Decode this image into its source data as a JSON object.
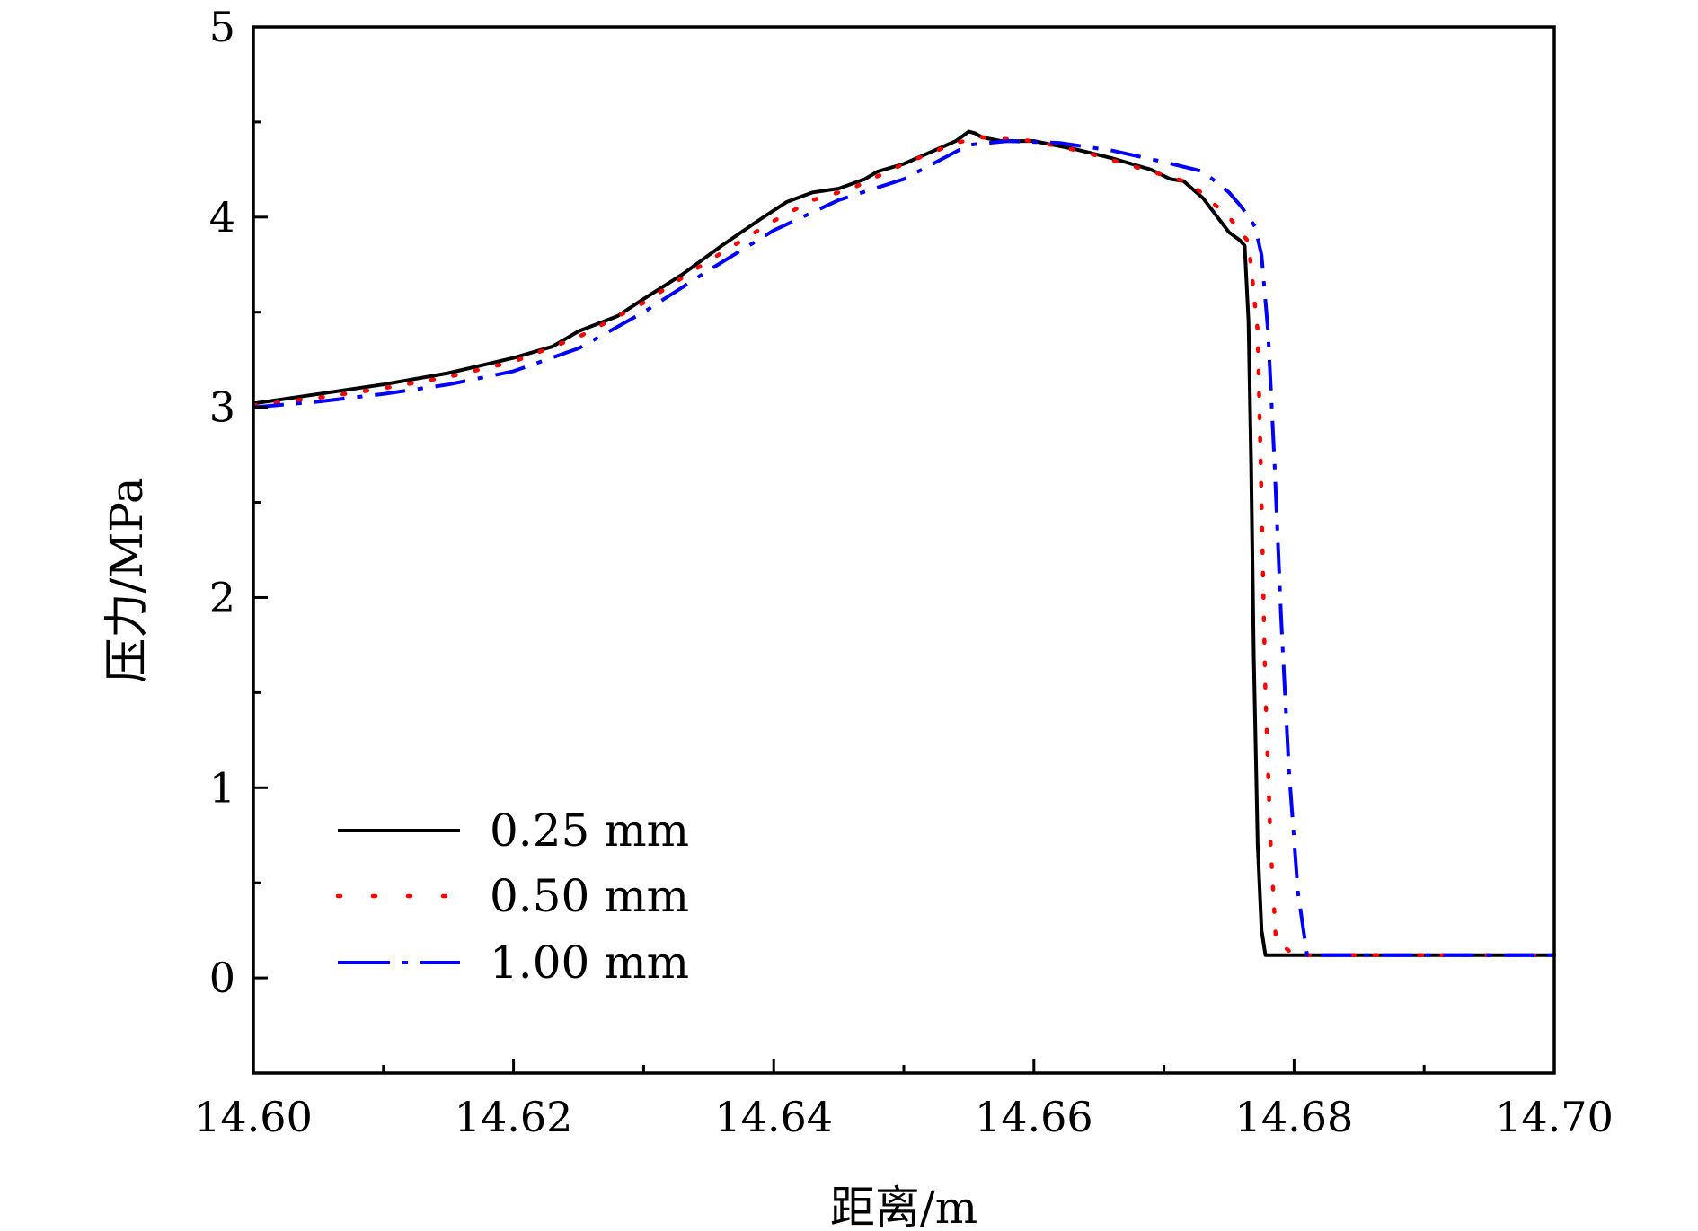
{
  "chart_data": {
    "type": "line",
    "title": "",
    "xlabel": "距离/m",
    "ylabel": "压力/MPa",
    "xlim": [
      14.6,
      14.7
    ],
    "ylim": [
      -0.5,
      5
    ],
    "x_ticks": [
      "14.60",
      "14.62",
      "14.64",
      "14.66",
      "14.68",
      "14.70"
    ],
    "x_tick_values": [
      14.6,
      14.62,
      14.64,
      14.66,
      14.68,
      14.7
    ],
    "y_ticks": [
      "0",
      "1",
      "2",
      "3",
      "4",
      "5"
    ],
    "y_tick_values": [
      0,
      1,
      2,
      3,
      4,
      5
    ],
    "grid": false,
    "legend_position": "bottom-left",
    "series": [
      {
        "name": "0.25 mm",
        "color": "#000000",
        "style": "solid",
        "x": [
          14.6,
          14.605,
          14.61,
          14.615,
          14.62,
          14.623,
          14.625,
          14.628,
          14.63,
          14.633,
          14.636,
          14.639,
          14.641,
          14.643,
          14.645,
          14.647,
          14.648,
          14.65,
          14.652,
          14.654,
          14.655,
          14.6555,
          14.656,
          14.6575,
          14.66,
          14.663,
          14.666,
          14.669,
          14.6705,
          14.6715,
          14.673,
          14.675,
          14.6758,
          14.6762,
          14.6765,
          14.6767,
          14.6769,
          14.6772,
          14.6775,
          14.6778,
          14.68,
          14.685,
          14.69,
          14.695,
          14.7
        ],
        "values": [
          3.02,
          3.07,
          3.12,
          3.18,
          3.26,
          3.32,
          3.4,
          3.48,
          3.57,
          3.7,
          3.85,
          3.99,
          4.08,
          4.13,
          4.15,
          4.2,
          4.24,
          4.28,
          4.34,
          4.4,
          4.45,
          4.44,
          4.42,
          4.4,
          4.4,
          4.36,
          4.31,
          4.25,
          4.2,
          4.19,
          4.1,
          3.92,
          3.88,
          3.85,
          3.45,
          2.7,
          1.7,
          0.7,
          0.25,
          0.12,
          0.12,
          0.12,
          0.12,
          0.12,
          0.12
        ]
      },
      {
        "name": "0.50 mm",
        "color": "#ff0000",
        "style": "dotted",
        "x": [
          14.6,
          14.605,
          14.61,
          14.615,
          14.62,
          14.625,
          14.63,
          14.635,
          14.64,
          14.643,
          14.646,
          14.65,
          14.654,
          14.656,
          14.66,
          14.664,
          14.668,
          14.672,
          14.675,
          14.6765,
          14.6772,
          14.6775,
          14.6778,
          14.6782,
          14.6786,
          14.68,
          14.685,
          14.69,
          14.695,
          14.7
        ],
        "values": [
          3.01,
          3.05,
          3.1,
          3.16,
          3.24,
          3.37,
          3.55,
          3.77,
          3.98,
          4.09,
          4.15,
          4.28,
          4.39,
          4.42,
          4.4,
          4.34,
          4.26,
          4.18,
          4.0,
          3.87,
          3.4,
          2.5,
          1.5,
          0.7,
          0.2,
          0.12,
          0.12,
          0.12,
          0.12,
          0.12
        ]
      },
      {
        "name": "1.00 mm",
        "color": "#0000ff",
        "style": "dashdot",
        "x": [
          14.6,
          14.605,
          14.61,
          14.615,
          14.62,
          14.625,
          14.63,
          14.635,
          14.64,
          14.645,
          14.65,
          14.655,
          14.658,
          14.662,
          14.666,
          14.67,
          14.673,
          14.675,
          14.676,
          14.677,
          14.6775,
          14.678,
          14.6785,
          14.679,
          14.6796,
          14.6803,
          14.681,
          14.685,
          14.69,
          14.695,
          14.701
        ],
        "values": [
          3.0,
          3.03,
          3.07,
          3.12,
          3.19,
          3.31,
          3.5,
          3.72,
          3.93,
          4.09,
          4.2,
          4.38,
          4.4,
          4.39,
          4.35,
          4.29,
          4.24,
          4.13,
          4.05,
          3.95,
          3.8,
          3.4,
          2.7,
          1.9,
          1.1,
          0.45,
          0.12,
          0.12,
          0.12,
          0.12,
          0.12
        ]
      }
    ]
  }
}
